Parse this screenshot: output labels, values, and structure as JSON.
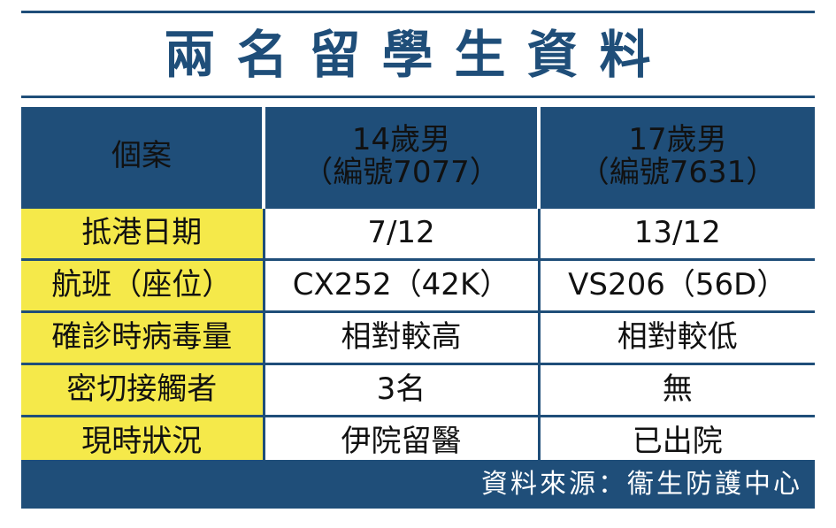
{
  "title": "兩名留學生資料",
  "colors": {
    "navy": "#1f4e79",
    "label_yellow": "#f5e94a"
  },
  "table": {
    "header": {
      "label": "個案",
      "case1_line1": "14歲男",
      "case1_line2": "（編號7077）",
      "case2_line1": "17歲男",
      "case2_line2": "（編號7631）"
    },
    "rows": [
      {
        "label": "抵港日期",
        "case1": "7/12",
        "case2": "13/12"
      },
      {
        "label": "航班（座位）",
        "case1": "CX252（42K）",
        "case2": "VS206（56D）"
      },
      {
        "label": "確診時病毒量",
        "case1": "相對較高",
        "case2": "相對較低"
      },
      {
        "label": "密切接觸者",
        "case1": "3名",
        "case2": "無"
      },
      {
        "label": "現時狀況",
        "case1": "伊院留醫",
        "case2": "已出院"
      }
    ]
  },
  "footer": {
    "source": "資料來源：衞生防護中心"
  }
}
